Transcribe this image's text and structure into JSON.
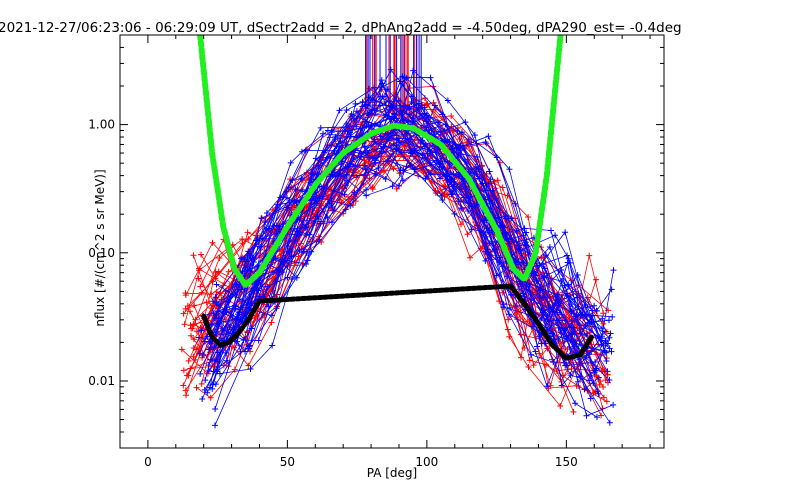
{
  "chart_data": {
    "type": "line",
    "title": "2021-12-27/06:23:06 - 06:29:09 UT, dSectr2add = 2, dPhAng2add = -4.50deg, dPA290_est=  -0.4deg",
    "xlabel": "PA [deg]",
    "ylabel": "nflux [#/(cm^2 s sr MeV)]",
    "xlim": [
      -10,
      185
    ],
    "ylim": [
      0.003,
      5
    ],
    "yscale": "log",
    "grid": false,
    "x_ticks": [
      0,
      50,
      100,
      150
    ],
    "x_tick_labels": [
      "0",
      "50",
      "100",
      "150"
    ],
    "y_ticks": [
      0.01,
      0.1,
      1.0
    ],
    "y_tick_labels": [
      "0.01",
      "0.10",
      "1.00"
    ],
    "colors": {
      "red_series": "#ff0000",
      "blue_series": "#0000ff",
      "green_fit": "#22ee22",
      "black_fit": "#000000"
    },
    "series": [
      {
        "color": "red",
        "style": "lines with + markers",
        "typical_profile": {
          "x": [
            12,
            20,
            30,
            40,
            50,
            60,
            70,
            80,
            88,
            95,
            105,
            115,
            125,
            135,
            145,
            155,
            165
          ],
          "y": [
            0.02,
            0.025,
            0.035,
            0.06,
            0.12,
            0.25,
            0.45,
            0.72,
            0.85,
            0.8,
            0.55,
            0.32,
            0.15,
            0.05,
            0.025,
            0.018,
            0.012
          ]
        }
      },
      {
        "color": "blue",
        "style": "lines with + markers",
        "typical_profile": {
          "x": [
            18,
            25,
            35,
            45,
            55,
            65,
            75,
            85,
            90,
            95,
            105,
            115,
            125,
            135,
            145,
            155,
            167
          ],
          "y": [
            0.012,
            0.02,
            0.04,
            0.09,
            0.2,
            0.42,
            0.68,
            0.9,
            0.97,
            0.93,
            0.68,
            0.4,
            0.18,
            0.065,
            0.035,
            0.022,
            0.015
          ]
        }
      },
      {
        "color": "green",
        "style": "thick dashed fit",
        "x": [
          18.7,
          23,
          27,
          31,
          35,
          40,
          50,
          60,
          70,
          80,
          88,
          95,
          105,
          115,
          125,
          131,
          135,
          139,
          143,
          147.9
        ],
        "y": [
          5,
          0.6,
          0.16,
          0.075,
          0.056,
          0.07,
          0.16,
          0.34,
          0.6,
          0.85,
          0.98,
          0.94,
          0.7,
          0.38,
          0.15,
          0.075,
          0.062,
          0.1,
          0.4,
          5
        ]
      },
      {
        "color": "black",
        "style": "thick dotted fit",
        "x": [
          20,
          23,
          26,
          29,
          32,
          36,
          40,
          130,
          135,
          140,
          145,
          150,
          155,
          159
        ],
        "y": [
          0.032,
          0.022,
          0.019,
          0.02,
          0.023,
          0.03,
          0.042,
          0.055,
          0.04,
          0.028,
          0.019,
          0.015,
          0.016,
          0.022
        ]
      }
    ]
  }
}
